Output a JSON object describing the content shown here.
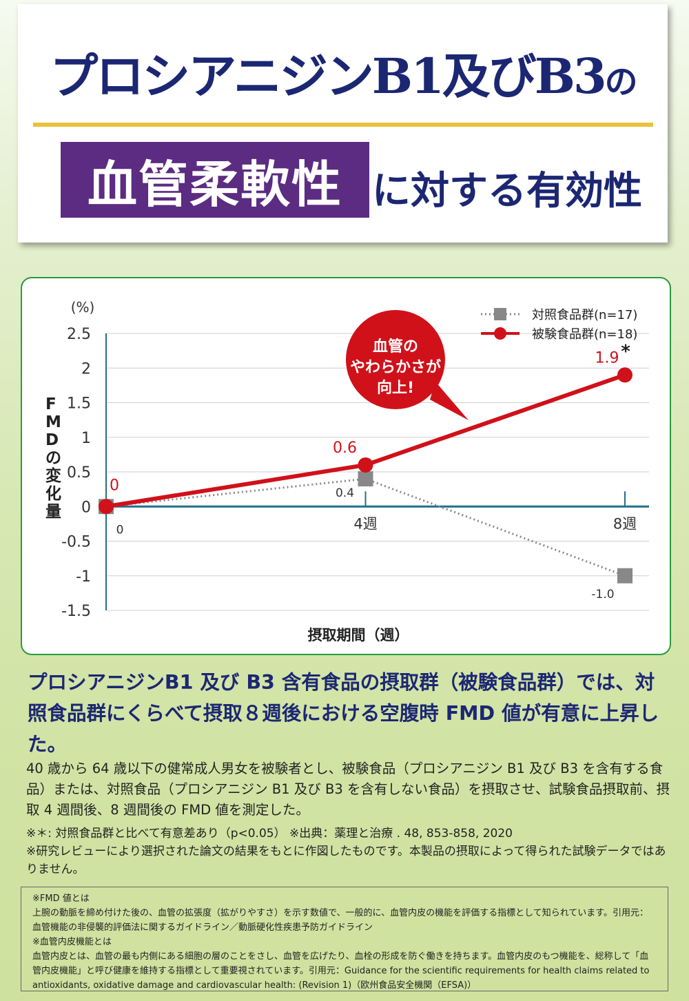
{
  "header": {
    "title_part1": "プロシアニジンB1及びB3",
    "title_part2": "の",
    "highlight": "血管柔軟性",
    "subtitle": "に対する有効性"
  },
  "chart_data": {
    "type": "line",
    "ylabel_unit": "(%)",
    "ylabel": "FMDの変化量",
    "xlabel": "摂取期間（週）",
    "ylim": [
      -1.5,
      2.5
    ],
    "yticks": [
      "2.5",
      "2",
      "1.5",
      "1",
      "0.5",
      "0",
      "-0.5",
      "-1",
      "-1.5"
    ],
    "x": [
      0,
      4,
      8
    ],
    "xtick_labels": [
      "0",
      "4週",
      "8週"
    ],
    "series": [
      {
        "name": "対照食品群(n=17)",
        "color": "#888888",
        "values": [
          0,
          0.4,
          -1.0
        ],
        "labels": [
          "",
          "0.4",
          "-1.0"
        ]
      },
      {
        "name": "被験食品群(n=18)",
        "color": "#d0111a",
        "values": [
          0,
          0.6,
          1.9
        ],
        "labels": [
          "0",
          "0.6",
          "1.9"
        ]
      }
    ],
    "significance_mark": "*",
    "callout": [
      "血管の",
      "やわらかさが",
      "向上!"
    ],
    "legend": "top-right"
  },
  "summary": "プロシアニジンB1 及び B3 含有食品の摂取群（被験食品群）では、対照食品群にくらべて摂取８週後における空腹時 FMD 値が有意に上昇した。",
  "description": "40 歳から 64 歳以下の健常成人男女を被験者とし、被験食品（プロシアニジン B1 及び B3 を含有する食品）または、対照食品（プロシアニジン B1 及び B3 を含有しない食品）を摂取させ、試験食品摂取前、摂取 4 週間後、8 週間後の FMD 値を測定した。",
  "notes": {
    "line1": "※＊: 対照食品群と比べて有意差あり（p<0.05） ※出典：薬理と治療 . 48, 853-858, 2020",
    "line2": "※研究レビューにより選択された論文の結果をもとに作図したものです。本製品の摂取によって得られた試験データではありません。"
  },
  "definitions": {
    "fmd_heading": "※FMD 値とは",
    "fmd_text": "上腕の動脈を締め付けた後の、血管の拡張度（拡がりやすさ）を示す数値で、一般的に、血管内皮の機能を評価する指標として知られています。引用元：血管機能の非侵襲的評価法に関するガイドライン／動脈硬化性疾患予防ガイドライン",
    "endo_heading": "※血管内皮機能とは",
    "endo_text": "血管内皮とは、血管の最も内側にある細胞の層のことをさし、血管を広げたり、血栓の形成を防ぐ働きを持ちます。血管内皮のもつ機能を、総称して「血管内皮機能」と呼び健康を維持する指標として重要視されています。引用元：Guidance for the scientific requirements for health claims related to antioxidants, oxidative damage and cardiovascular health: (Revision 1)（欧州食品安全機関（EFSA)）"
  }
}
